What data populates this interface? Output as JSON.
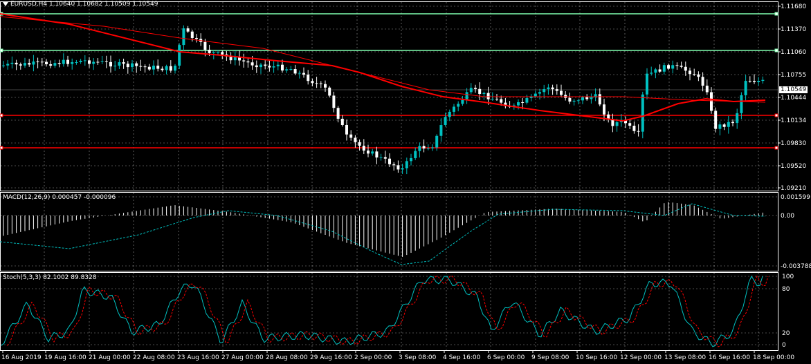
{
  "symbol_info": "EURUSD,H4  1.10640 1.10682 1.10509 1.10549",
  "current_price": "1.10549",
  "price_axis": [
    "1.11680",
    "1.11370",
    "1.11060",
    "1.10755",
    "1.10444",
    "1.10134",
    "1.09830",
    "1.09520",
    "1.09210"
  ],
  "macd": {
    "label": "MACD(12,26,9) 0.000457 -0.000096",
    "axis": [
      "0.001599",
      "0.00",
      "-0.003788"
    ]
  },
  "stoch": {
    "label": "Stoch(5,3,3) 82.1002 89.8328",
    "axis": [
      "100",
      "80",
      "20",
      "0"
    ]
  },
  "time_axis": [
    "16 Aug 2019",
    "19 Aug 16:00",
    "21 Aug 00:00",
    "22 Aug 08:00",
    "23 Aug 16:00",
    "27 Aug 00:00",
    "28 Aug 08:00",
    "29 Aug 16:00",
    "2 Sep 00:00",
    "3 Sep 08:00",
    "4 Sep 16:00",
    "6 Sep 00:00",
    "9 Sep 08:00",
    "10 Sep 16:00",
    "12 Sep 00:00",
    "13 Sep 08:00",
    "16 Sep 16:00",
    "18 Sep 00:00"
  ],
  "horizontal_levels": {
    "green": [
      "1.11620",
      "1.11080"
    ],
    "red": [
      "1.10230",
      "1.09780"
    ]
  },
  "colors": {
    "bull": "#00c0c0",
    "bear": "#ffffff",
    "grid": "#ffffff",
    "level_green": "#80ffb0",
    "level_red": "#ff0000",
    "ma": "#ff0000",
    "signal": "#00c0c0"
  }
}
